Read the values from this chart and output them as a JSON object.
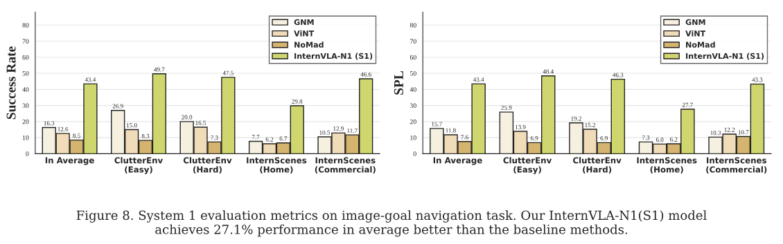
{
  "chart_data": [
    {
      "type": "bar",
      "ylabel": "Success Rate",
      "categories": [
        "In Average",
        "ClutterEnv\n(Easy)",
        "ClutterEnv\n(Hard)",
        "InternScenes\n(Home)",
        "InternScenes\n(Commercial)"
      ],
      "series": [
        {
          "name": "GNM",
          "color": "#f5f0df",
          "values": [
            16.3,
            26.9,
            20.0,
            7.7,
            10.5
          ],
          "value_labels": [
            "16.3",
            "26.9",
            "20.0",
            "7.7",
            "10.5"
          ]
        },
        {
          "name": "ViNT",
          "color": "#f0dcb8",
          "values": [
            12.6,
            15.0,
            16.5,
            6.2,
            12.9
          ],
          "value_labels": [
            "12.6",
            "15.0",
            "16.5",
            "6.2",
            "12.9"
          ]
        },
        {
          "name": "NoMad",
          "color": "#d4b46e",
          "values": [
            8.5,
            8.3,
            7.3,
            6.7,
            11.7
          ],
          "value_labels": [
            "8.5",
            "8.3",
            "7.3",
            "6.7",
            "11.7"
          ]
        },
        {
          "name": "InternVLA-N1 (S1)",
          "color": "#cfd66e",
          "values": [
            43.4,
            49.7,
            47.5,
            29.8,
            46.6
          ],
          "value_labels": [
            "43.4",
            "49.7",
            "47.5",
            "29.8",
            "46.6"
          ]
        }
      ],
      "ylim": [
        0,
        88
      ],
      "yticks": [
        0,
        10,
        20,
        30,
        40,
        50,
        60,
        70,
        80
      ],
      "grid": "y",
      "legend": "top right",
      "annotations": [
        "Figure 8. System 1 evaluation metrics on image-goal navigation task. Our InternVLA-N1(S1) model\nachieves 27.1% performance in average better than the baseline methods."
      ]
    },
    {
      "type": "bar",
      "ylabel": "SPL",
      "categories": [
        "In Average",
        "ClutterEnv\n(Easy)",
        "ClutterEnv\n(Hard)",
        "InternScenes\n(Home)",
        "InternScenes\n(Commercial)"
      ],
      "series": [
        {
          "name": "GNM",
          "color": "#f5f0df",
          "values": [
            15.7,
            25.9,
            19.2,
            7.3,
            10.3
          ],
          "value_labels": [
            "15.7",
            "25.9",
            "19.2",
            "7.3",
            "10.3"
          ]
        },
        {
          "name": "ViNT",
          "color": "#f0dcb8",
          "values": [
            11.8,
            13.9,
            15.2,
            6.0,
            12.2
          ],
          "value_labels": [
            "11.8",
            "13.9",
            "15.2",
            "6.0",
            "12.2"
          ]
        },
        {
          "name": "NoMad",
          "color": "#d4b46e",
          "values": [
            7.6,
            6.9,
            6.9,
            6.2,
            10.7
          ],
          "value_labels": [
            "7.6",
            "6.9",
            "6.9",
            "6.2",
            "10.7"
          ]
        },
        {
          "name": "InternVLA-N1 (S1)",
          "color": "#cfd66e",
          "values": [
            43.4,
            48.4,
            46.3,
            27.7,
            43.3
          ],
          "value_labels": [
            "43.4",
            "48.4",
            "46.3",
            "27.7",
            "43.3"
          ]
        }
      ],
      "ylim": [
        0,
        88
      ],
      "yticks": [
        0,
        10,
        20,
        30,
        40,
        50,
        60,
        70,
        80
      ],
      "grid": "y",
      "legend": "top right"
    }
  ]
}
